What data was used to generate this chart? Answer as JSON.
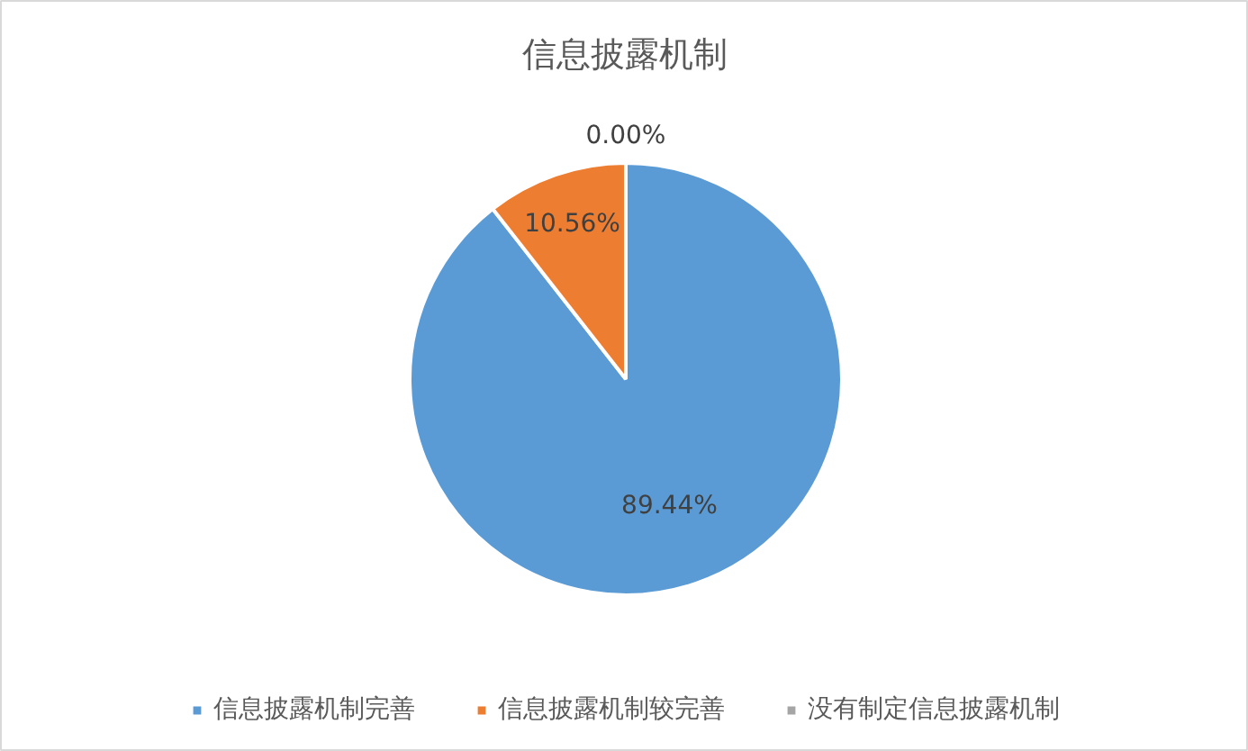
{
  "chart_data": {
    "type": "pie",
    "title": "信息披露机制",
    "categories": [
      "信息披露机制完善",
      "信息披露机制较完善",
      "没有制定信息披露机制"
    ],
    "values": [
      89.44,
      10.56,
      0.0
    ],
    "colors": [
      "#5b9bd5",
      "#ed7d31",
      "#a5a5a5"
    ],
    "value_labels": [
      "89.44%",
      "10.56%",
      "0.00%"
    ],
    "legend": "bottom"
  }
}
